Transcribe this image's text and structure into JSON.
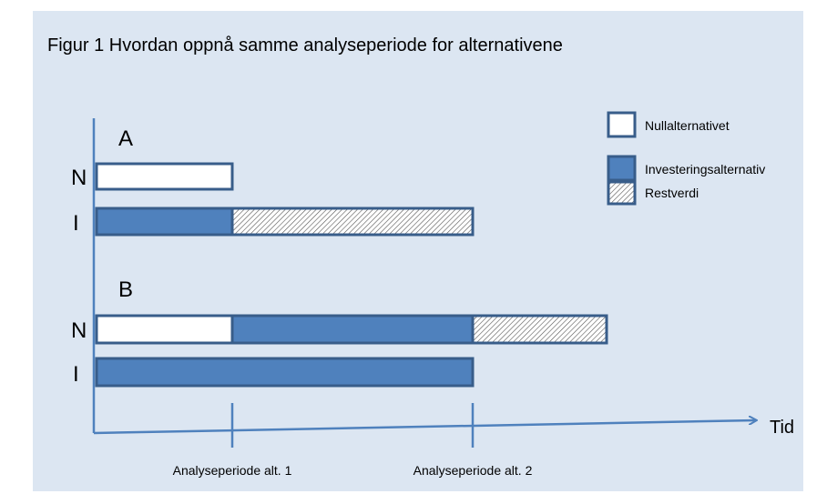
{
  "title": "Figur 1  Hvordan oppnå samme analyseperiode for alternativene",
  "axis_label": "Tid",
  "periods": [
    "Analyseperiode alt. 1",
    "Analyseperiode alt. 2"
  ],
  "groups": [
    {
      "label": "A",
      "rows": [
        "N",
        "I"
      ]
    },
    {
      "label": "B",
      "rows": [
        "N",
        "I"
      ]
    }
  ],
  "legend": [
    "Nullalternativet",
    "Investeringsalternativ",
    "Restverdi"
  ]
}
